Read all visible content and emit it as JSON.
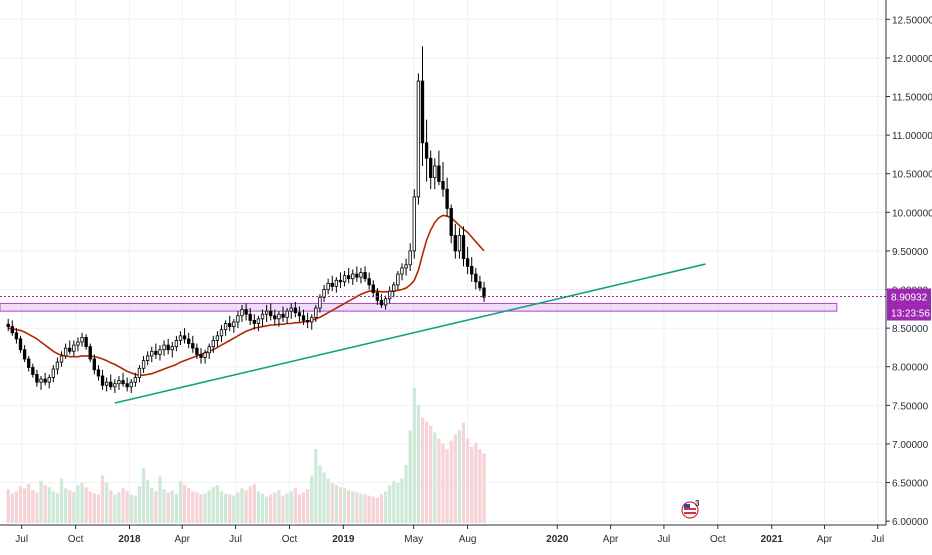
{
  "chart_data": {
    "type": "candlestick",
    "price_axis": {
      "position": "right",
      "ticks": [
        "12.50000",
        "12.00000",
        "11.50000",
        "11.00000",
        "10.50000",
        "10.00000",
        "9.50000",
        "9.00000",
        "8.50000",
        "8.00000",
        "7.50000",
        "7.00000",
        "6.50000",
        "6.00000"
      ],
      "tick_values": [
        12.5,
        12.0,
        11.5,
        11.0,
        10.5,
        10.0,
        9.5,
        9.0,
        8.5,
        8.0,
        7.5,
        7.0,
        6.5,
        6.0
      ],
      "range": [
        5.95,
        12.75
      ]
    },
    "time_axis": {
      "labels": [
        "Jul",
        "Oct",
        "2018",
        "Apr",
        "Jul",
        "Oct",
        "2019",
        "May",
        "Aug",
        "2020",
        "Apr",
        "Jul",
        "Oct",
        "2021",
        "Apr",
        "Jul"
      ],
      "bold_labels": [
        "2018",
        "2019",
        "2020",
        "2021"
      ],
      "range": [
        "2017-05-25",
        "2021-07-15"
      ]
    },
    "price_tags": {
      "last_price": "8.90932",
      "countdown": "13:23:56"
    },
    "series": [
      {
        "kind": "candles",
        "interval": "weekly",
        "start": "2017-06-08",
        "ohlc": [
          [
            8.55,
            8.62,
            8.46,
            8.52
          ],
          [
            8.52,
            8.6,
            8.4,
            8.44
          ],
          [
            8.44,
            8.5,
            8.3,
            8.36
          ],
          [
            8.36,
            8.4,
            8.18,
            8.22
          ],
          [
            8.22,
            8.28,
            8.06,
            8.1
          ],
          [
            8.1,
            8.14,
            7.94,
            7.99
          ],
          [
            7.99,
            8.04,
            7.86,
            7.9
          ],
          [
            7.9,
            7.96,
            7.74,
            7.8
          ],
          [
            7.8,
            7.88,
            7.7,
            7.84
          ],
          [
            7.84,
            7.92,
            7.76,
            7.8
          ],
          [
            7.8,
            7.9,
            7.72,
            7.86
          ],
          [
            7.86,
            8.02,
            7.8,
            7.97
          ],
          [
            7.97,
            8.12,
            7.9,
            8.06
          ],
          [
            8.06,
            8.2,
            8.0,
            8.14
          ],
          [
            8.14,
            8.3,
            8.1,
            8.24
          ],
          [
            8.24,
            8.34,
            8.16,
            8.2
          ],
          [
            8.2,
            8.34,
            8.14,
            8.28
          ],
          [
            8.28,
            8.38,
            8.2,
            8.32
          ],
          [
            8.32,
            8.44,
            8.26,
            8.38
          ],
          [
            8.38,
            8.42,
            8.22,
            8.26
          ],
          [
            8.26,
            8.3,
            8.06,
            8.1
          ],
          [
            8.1,
            8.16,
            7.9,
            7.96
          ],
          [
            7.96,
            8.02,
            7.82,
            7.88
          ],
          [
            7.88,
            7.96,
            7.7,
            7.76
          ],
          [
            7.76,
            7.86,
            7.68,
            7.8
          ],
          [
            7.8,
            7.9,
            7.7,
            7.74
          ],
          [
            7.74,
            7.84,
            7.66,
            7.78
          ],
          [
            7.78,
            7.88,
            7.7,
            7.82
          ],
          [
            7.82,
            7.92,
            7.74,
            7.78
          ],
          [
            7.78,
            7.86,
            7.68,
            7.74
          ],
          [
            7.74,
            7.84,
            7.66,
            7.8
          ],
          [
            7.8,
            7.92,
            7.74,
            7.86
          ],
          [
            7.86,
            8.02,
            7.8,
            7.98
          ],
          [
            7.98,
            8.14,
            7.92,
            8.08
          ],
          [
            8.08,
            8.2,
            8.02,
            8.14
          ],
          [
            8.14,
            8.26,
            8.06,
            8.2
          ],
          [
            8.2,
            8.3,
            8.1,
            8.16
          ],
          [
            8.16,
            8.28,
            8.08,
            8.22
          ],
          [
            8.22,
            8.34,
            8.14,
            8.28
          ],
          [
            8.28,
            8.36,
            8.16,
            8.22
          ],
          [
            8.22,
            8.32,
            8.12,
            8.26
          ],
          [
            8.26,
            8.4,
            8.2,
            8.34
          ],
          [
            8.34,
            8.46,
            8.28,
            8.4
          ],
          [
            8.4,
            8.5,
            8.3,
            8.36
          ],
          [
            8.36,
            8.44,
            8.24,
            8.3
          ],
          [
            8.3,
            8.4,
            8.18,
            8.24
          ],
          [
            8.24,
            8.3,
            8.1,
            8.16
          ],
          [
            8.16,
            8.24,
            8.04,
            8.12
          ],
          [
            8.12,
            8.22,
            8.04,
            8.18
          ],
          [
            8.18,
            8.3,
            8.1,
            8.26
          ],
          [
            8.26,
            8.4,
            8.18,
            8.34
          ],
          [
            8.34,
            8.46,
            8.26,
            8.4
          ],
          [
            8.4,
            8.54,
            8.32,
            8.48
          ],
          [
            8.48,
            8.6,
            8.4,
            8.56
          ],
          [
            8.56,
            8.66,
            8.46,
            8.52
          ],
          [
            8.52,
            8.62,
            8.44,
            8.58
          ],
          [
            8.58,
            8.72,
            8.5,
            8.66
          ],
          [
            8.66,
            8.8,
            8.58,
            8.74
          ],
          [
            8.74,
            8.82,
            8.6,
            8.68
          ],
          [
            8.68,
            8.76,
            8.54,
            8.6
          ],
          [
            8.6,
            8.68,
            8.48,
            8.56
          ],
          [
            8.56,
            8.66,
            8.46,
            8.62
          ],
          [
            8.62,
            8.74,
            8.52,
            8.68
          ],
          [
            8.68,
            8.8,
            8.58,
            8.72
          ],
          [
            8.72,
            8.82,
            8.6,
            8.66
          ],
          [
            8.66,
            8.74,
            8.54,
            8.62
          ],
          [
            8.62,
            8.72,
            8.52,
            8.68
          ],
          [
            8.68,
            8.78,
            8.58,
            8.64
          ],
          [
            8.64,
            8.76,
            8.56,
            8.72
          ],
          [
            8.72,
            8.82,
            8.62,
            8.76
          ],
          [
            8.76,
            8.84,
            8.64,
            8.7
          ],
          [
            8.7,
            8.78,
            8.58,
            8.66
          ],
          [
            8.66,
            8.74,
            8.54,
            8.6
          ],
          [
            8.6,
            8.7,
            8.5,
            8.58
          ],
          [
            8.58,
            8.68,
            8.48,
            8.64
          ],
          [
            8.64,
            8.8,
            8.58,
            8.76
          ],
          [
            8.76,
            8.94,
            8.7,
            8.9
          ],
          [
            8.9,
            9.06,
            8.84,
            9.0
          ],
          [
            9.0,
            9.14,
            8.94,
            9.08
          ],
          [
            9.08,
            9.18,
            8.98,
            9.04
          ],
          [
            9.04,
            9.16,
            8.96,
            9.12
          ],
          [
            9.12,
            9.22,
            9.02,
            9.1
          ],
          [
            9.1,
            9.24,
            9.04,
            9.18
          ],
          [
            9.18,
            9.28,
            9.08,
            9.14
          ],
          [
            9.14,
            9.26,
            9.06,
            9.2
          ],
          [
            9.2,
            9.3,
            9.1,
            9.16
          ],
          [
            9.16,
            9.28,
            9.08,
            9.22
          ],
          [
            9.22,
            9.3,
            9.1,
            9.14
          ],
          [
            9.14,
            9.22,
            9.0,
            9.06
          ],
          [
            9.06,
            9.12,
            8.9,
            8.96
          ],
          [
            8.96,
            9.02,
            8.8,
            8.86
          ],
          [
            8.86,
            8.94,
            8.76,
            8.8
          ],
          [
            8.8,
            8.92,
            8.74,
            8.88
          ],
          [
            8.88,
            9.04,
            8.82,
            8.98
          ],
          [
            8.98,
            9.1,
            8.9,
            9.06
          ],
          [
            9.06,
            9.24,
            9.0,
            9.2
          ],
          [
            9.2,
            9.34,
            9.12,
            9.28
          ],
          [
            9.28,
            9.4,
            9.18,
            9.32
          ],
          [
            9.32,
            9.6,
            9.24,
            9.5
          ],
          [
            9.5,
            10.3,
            9.4,
            10.2
          ],
          [
            10.2,
            11.8,
            10.1,
            11.7
          ],
          [
            11.7,
            12.15,
            10.6,
            10.9
          ],
          [
            10.9,
            11.2,
            10.4,
            10.7
          ],
          [
            10.7,
            10.8,
            10.3,
            10.45
          ],
          [
            10.45,
            10.7,
            10.3,
            10.6
          ],
          [
            10.6,
            10.8,
            10.35,
            10.4
          ],
          [
            10.4,
            10.65,
            10.2,
            10.3
          ],
          [
            10.3,
            10.45,
            9.95,
            10.05
          ],
          [
            10.05,
            10.1,
            9.6,
            9.7
          ],
          [
            9.7,
            9.85,
            9.4,
            9.5
          ],
          [
            9.5,
            9.8,
            9.4,
            9.7
          ],
          [
            9.7,
            9.82,
            9.3,
            9.4
          ],
          [
            9.4,
            9.55,
            9.2,
            9.3
          ],
          [
            9.3,
            9.42,
            9.1,
            9.2
          ],
          [
            9.2,
            9.28,
            9.0,
            9.1
          ],
          [
            9.1,
            9.18,
            8.98,
            9.02
          ],
          [
            9.02,
            9.1,
            8.84,
            8.9
          ]
        ]
      },
      {
        "kind": "moving_average",
        "color": "#b22800",
        "values": [
          8.5,
          8.49,
          8.48,
          8.47,
          8.45,
          8.42,
          8.39,
          8.36,
          8.32,
          8.28,
          8.24,
          8.2,
          8.17,
          8.15,
          8.14,
          8.13,
          8.13,
          8.13,
          8.14,
          8.14,
          8.14,
          8.13,
          8.12,
          8.1,
          8.08,
          8.05,
          8.03,
          8.0,
          7.97,
          7.94,
          7.92,
          7.9,
          7.89,
          7.89,
          7.9,
          7.91,
          7.93,
          7.95,
          7.97,
          7.99,
          8.01,
          8.03,
          8.06,
          8.08,
          8.1,
          8.12,
          8.14,
          8.16,
          8.18,
          8.2,
          8.22,
          8.25,
          8.28,
          8.31,
          8.34,
          8.37,
          8.4,
          8.43,
          8.46,
          8.48,
          8.5,
          8.51,
          8.52,
          8.53,
          8.54,
          8.54,
          8.55,
          8.55,
          8.56,
          8.56,
          8.57,
          8.57,
          8.58,
          8.59,
          8.6,
          8.62,
          8.64,
          8.67,
          8.7,
          8.73,
          8.76,
          8.79,
          8.82,
          8.85,
          8.88,
          8.91,
          8.94,
          8.96,
          8.98,
          8.98,
          8.98,
          8.97,
          8.97,
          8.97,
          8.98,
          8.99,
          9.0,
          9.02,
          9.06,
          9.12,
          9.25,
          9.45,
          9.64,
          9.77,
          9.87,
          9.93,
          9.96,
          9.95,
          9.93,
          9.88,
          9.83,
          9.78,
          9.74,
          9.68,
          9.62,
          9.56,
          9.5
        ]
      },
      {
        "kind": "volume",
        "values": [
          32,
          28,
          30,
          35,
          33,
          37,
          31,
          29,
          40,
          36,
          34,
          30,
          28,
          42,
          33,
          31,
          29,
          36,
          38,
          34,
          30,
          28,
          27,
          45,
          38,
          31,
          27,
          29,
          33,
          30,
          27,
          26,
          35,
          52,
          41,
          33,
          30,
          44,
          32,
          29,
          31,
          28,
          40,
          36,
          33,
          30,
          29,
          27,
          28,
          31,
          34,
          36,
          30,
          28,
          27,
          26,
          29,
          33,
          31,
          35,
          37,
          30,
          28,
          25,
          27,
          29,
          31,
          26,
          28,
          30,
          33,
          27,
          29,
          32,
          45,
          70,
          55,
          48,
          42,
          38,
          36,
          34,
          33,
          31,
          30,
          29,
          28,
          27,
          26,
          25,
          24,
          27,
          30,
          36,
          40,
          38,
          42,
          55,
          88,
          128,
          112,
          100,
          96,
          92,
          86,
          80,
          75,
          70,
          78,
          84,
          88,
          95,
          80,
          72,
          76,
          70,
          66
        ]
      }
    ],
    "annotations": {
      "trendline": {
        "color": "#12a37e",
        "from": [
          "2017-12-07",
          7.53
        ],
        "to": [
          "2020-09-10",
          9.33
        ]
      },
      "support_zone": {
        "color": "#b040d6",
        "from": "2017-05-25",
        "to": "2021-04-22",
        "low": 8.72,
        "high": 8.82
      },
      "price_line": {
        "value": 8.90932,
        "style": "dotted",
        "color": "#9c27b0"
      }
    },
    "grid": true,
    "colors": {
      "up": "#ffffff",
      "down": "#000000",
      "wick": "#000000",
      "volume_up": "#cfe9d8",
      "volume_down": "#f6d3d6"
    }
  },
  "watermark": {
    "badge_text": "3"
  }
}
